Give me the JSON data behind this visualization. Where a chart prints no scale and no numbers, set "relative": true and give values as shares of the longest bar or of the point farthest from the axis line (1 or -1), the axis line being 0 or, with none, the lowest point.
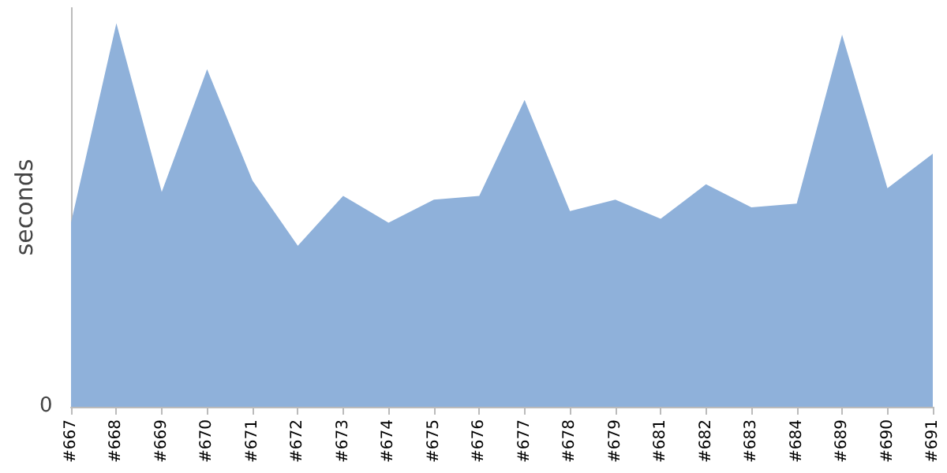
{
  "chart_data": {
    "type": "area",
    "ylabel": "seconds",
    "relative": true,
    "annotations": [
      "0"
    ],
    "categories": [
      "#667",
      "#668",
      "#669",
      "#670",
      "#671",
      "#672",
      "#673",
      "#674",
      "#675",
      "#676",
      "#677",
      "#678",
      "#679",
      "#681",
      "#682",
      "#683",
      "#684",
      "#689",
      "#690",
      "#691"
    ],
    "series": [
      {
        "color": "#8fb1da",
        "values": [
          0.48,
          1,
          0.56,
          0.88,
          0.59,
          0.42,
          0.55,
          0.48,
          0.54,
          0.55,
          0.8,
          0.51,
          0.54,
          0.49,
          0.58,
          0.52,
          0.53,
          0.97,
          0.57,
          0.66
        ]
      }
    ]
  }
}
